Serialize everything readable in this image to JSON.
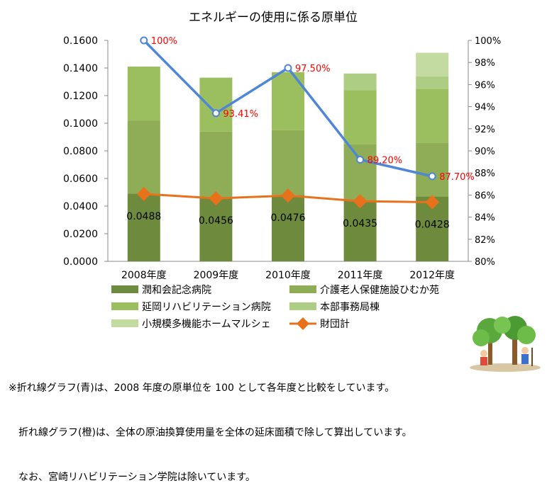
{
  "chart_data": {
    "type": "bar",
    "title": "エネルギーの使用に係る原単位",
    "categories": [
      "2008年度",
      "2009年度",
      "2010年度",
      "2011年度",
      "2012年度"
    ],
    "y_left": {
      "ylim": [
        0,
        0.16
      ],
      "ticks": [
        "0.0000",
        "0.0200",
        "0.0400",
        "0.0600",
        "0.0800",
        "0.1000",
        "0.1200",
        "0.1400",
        "0.1600"
      ]
    },
    "y_right": {
      "ylim": [
        80,
        100
      ],
      "ticks": [
        "80%",
        "82%",
        "84%",
        "86%",
        "88%",
        "90%",
        "92%",
        "94%",
        "96%",
        "98%",
        "100%"
      ]
    },
    "stack_series": [
      {
        "name": "潤和会記念病院",
        "color": "#6e8b3d",
        "values": [
          0.049,
          0.046,
          0.048,
          0.044,
          0.047
        ]
      },
      {
        "name": "介護老人保健施設ひむか苑",
        "color": "#8fad56",
        "values": [
          0.053,
          0.048,
          0.047,
          0.041,
          0.039
        ]
      },
      {
        "name": "延岡リハビリテーション病院",
        "color": "#9bbf5e",
        "values": [
          0.039,
          0.039,
          0.042,
          0.039,
          0.039
        ]
      },
      {
        "name": "本部事務局棟",
        "color": "#aecd84",
        "values": [
          0,
          0,
          0,
          0.012,
          0.009
        ]
      },
      {
        "name": "小規模多機能ホームマルシェ",
        "color": "#c3dba1",
        "values": [
          0,
          0,
          0,
          0,
          0.017
        ]
      }
    ],
    "line_total": {
      "name": "財団計",
      "color": "#e8711c",
      "values": [
        0.0488,
        0.0456,
        0.0476,
        0.0435,
        0.0428
      ],
      "labels": [
        "0.0488",
        "0.0456",
        "0.0476",
        "0.0435",
        "0.0428"
      ]
    },
    "line_ratio": {
      "color": "#4f86d6",
      "label_color": "#ff0000",
      "values": [
        100,
        93.41,
        97.5,
        89.2,
        87.7
      ],
      "labels": [
        "100%",
        "93.41%",
        "97.50%",
        "89.20%",
        "87.70%"
      ]
    }
  },
  "notes": [
    "※折れ線グラフ(青)は、2008 年度の原単位を 100 として各年度と比較をしています。",
    "　折れ線グラフ(橙)は、全体の原油換算使用量を全体の延床面積で除して算出しています。",
    "　なお、宮崎リハビリテーション学院は除いています。"
  ]
}
